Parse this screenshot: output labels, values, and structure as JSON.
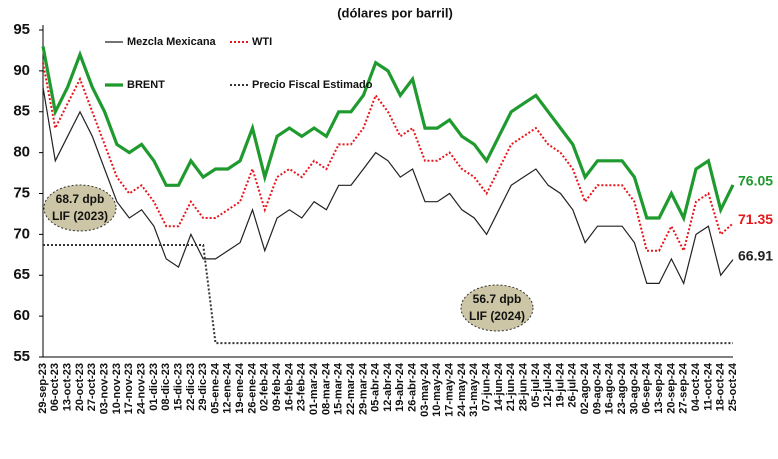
{
  "chart_data": {
    "type": "line",
    "title": "(dólares por barril)",
    "categories": [
      "29-sep-23",
      "06-oct-23",
      "13-oct-23",
      "20-oct-23",
      "27-oct-23",
      "03-nov-23",
      "10-nov-23",
      "17-nov-23",
      "24-nov-23",
      "01-dic-23",
      "08-dic-23",
      "15-dic-23",
      "22-dic-23",
      "29-dic-23",
      "05-ene-24",
      "12-ene-24",
      "19-ene-24",
      "26-ene-24",
      "02-feb-24",
      "09-feb-24",
      "16-feb-24",
      "23-feb-24",
      "01-mar-24",
      "08-mar-24",
      "15-mar-24",
      "22-mar-24",
      "29-mar-24",
      "05-abr-24",
      "12-abr-24",
      "19-abr-24",
      "26-abr-24",
      "03-may-24",
      "10-may-24",
      "17-may-24",
      "24-may-24",
      "31-may-24",
      "07-jun-24",
      "14-jun-24",
      "21-jun-24",
      "28-jun-24",
      "05-jul-24",
      "12-jul-24",
      "19-jul-24",
      "26-jul-24",
      "02-ago-24",
      "09-ago-24",
      "16-ago-24",
      "23-ago-24",
      "30-ago-24",
      "06-sep-24",
      "13-sep-24",
      "20-sep-24",
      "27-sep-24",
      "04-oct-24",
      "11-oct-24",
      "18-oct-24",
      "25-oct-24"
    ],
    "series": [
      {
        "name": "Mezcla Mexicana",
        "color": "#222222",
        "style": "solid",
        "values": [
          88,
          79,
          82,
          85,
          82,
          78,
          74,
          72,
          73,
          71,
          67,
          66,
          70,
          67,
          67,
          68,
          69,
          73,
          68,
          72,
          73,
          72,
          74,
          73,
          76,
          76,
          78,
          80,
          79,
          77,
          78,
          74,
          74,
          75,
          73,
          72,
          70,
          73,
          76,
          77,
          78,
          76,
          75,
          73,
          69,
          71,
          71,
          71,
          69,
          64,
          64,
          67,
          64,
          70,
          71,
          65,
          66.91
        ]
      },
      {
        "name": "WTI",
        "color": "#e8161b",
        "style": "dotted",
        "values": [
          91,
          83,
          86,
          89,
          85,
          81,
          77,
          75,
          76,
          74,
          71,
          71,
          74,
          72,
          72,
          73,
          74,
          78,
          73,
          77,
          78,
          77,
          79,
          78,
          81,
          81,
          83,
          87,
          85,
          82,
          83,
          79,
          79,
          80,
          78,
          77,
          75,
          78,
          81,
          82,
          83,
          81,
          80,
          78,
          74,
          76,
          76,
          76,
          74,
          68,
          68,
          71,
          68,
          74,
          75,
          70,
          71.35
        ]
      },
      {
        "name": "BRENT",
        "color": "#1f9a2e",
        "style": "thick",
        "values": [
          93,
          85,
          88,
          92,
          88,
          85,
          81,
          80,
          81,
          79,
          76,
          76,
          79,
          77,
          78,
          78,
          79,
          83,
          77,
          82,
          83,
          82,
          83,
          82,
          85,
          85,
          87,
          91,
          90,
          87,
          89,
          83,
          83,
          84,
          82,
          81,
          79,
          82,
          85,
          86,
          87,
          85,
          83,
          81,
          77,
          79,
          79,
          79,
          77,
          72,
          72,
          75,
          72,
          78,
          79,
          73,
          76.05
        ]
      },
      {
        "name": "Precio Fiscal Estimado",
        "color": "#333333",
        "style": "dotted",
        "values": [
          68.7,
          68.7,
          68.7,
          68.7,
          68.7,
          68.7,
          68.7,
          68.7,
          68.7,
          68.7,
          68.7,
          68.7,
          68.7,
          68.7,
          56.7,
          56.7,
          56.7,
          56.7,
          56.7,
          56.7,
          56.7,
          56.7,
          56.7,
          56.7,
          56.7,
          56.7,
          56.7,
          56.7,
          56.7,
          56.7,
          56.7,
          56.7,
          56.7,
          56.7,
          56.7,
          56.7,
          56.7,
          56.7,
          56.7,
          56.7,
          56.7,
          56.7,
          56.7,
          56.7,
          56.7,
          56.7,
          56.7,
          56.7,
          56.7,
          56.7,
          56.7,
          56.7,
          56.7,
          56.7,
          56.7,
          56.7,
          56.7
        ]
      }
    ],
    "annotations": [
      {
        "line1": "68.7 dpb",
        "line2": "LIF (2023)"
      },
      {
        "line1": "56.7 dpb",
        "line2": "LIF (2024)"
      }
    ],
    "ylim": [
      55,
      95
    ],
    "yticks": [
      55,
      60,
      65,
      70,
      75,
      80,
      85,
      90,
      95
    ]
  }
}
